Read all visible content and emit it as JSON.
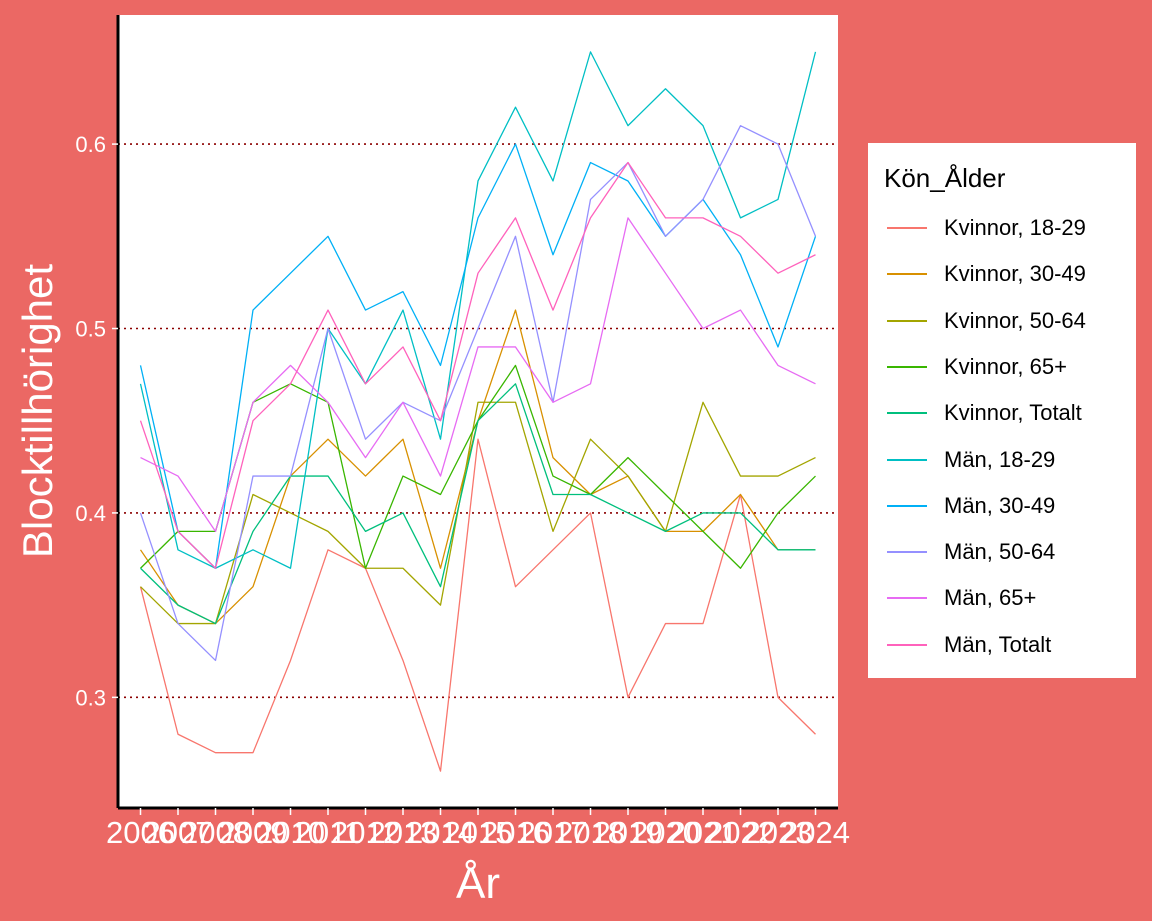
{
  "chart_data": {
    "type": "line",
    "title": "",
    "xlabel": "År",
    "ylabel": "Blocktillhörighet",
    "x": [
      2006,
      2007,
      2008,
      2009,
      2010,
      2011,
      2012,
      2013,
      2014,
      2015,
      2016,
      2017,
      2018,
      2019,
      2020,
      2021,
      2022,
      2023,
      2024
    ],
    "xlim": [
      2005.4,
      2024.6
    ],
    "ylim": [
      0.24,
      0.67
    ],
    "yticks": [
      0.3,
      0.4,
      0.5,
      0.6
    ],
    "ytick_labels": [
      "0.3",
      "0.4",
      "0.5",
      "0.6"
    ],
    "grid": "horizontal dotted lines at y ticks",
    "legend": {
      "title": "Kön_Ålder",
      "placement": "right"
    },
    "series": [
      {
        "name": "Kvinnor, 18-29",
        "color": "#f8766d",
        "values": [
          0.36,
          0.28,
          0.27,
          0.27,
          0.32,
          0.38,
          0.37,
          0.32,
          0.26,
          0.44,
          0.36,
          0.38,
          0.4,
          0.3,
          0.34,
          0.34,
          0.41,
          0.3,
          0.28
        ]
      },
      {
        "name": "Kvinnor, 30-49",
        "color": "#d89000",
        "values": [
          0.38,
          0.35,
          0.34,
          0.36,
          0.42,
          0.44,
          0.42,
          0.44,
          0.37,
          0.45,
          0.51,
          0.43,
          0.41,
          0.42,
          0.39,
          0.39,
          0.41,
          0.38,
          0.38
        ]
      },
      {
        "name": "Kvinnor, 50-64",
        "color": "#a3a500",
        "values": [
          0.36,
          0.34,
          0.34,
          0.41,
          0.4,
          0.39,
          0.37,
          0.37,
          0.35,
          0.46,
          0.46,
          0.39,
          0.44,
          0.42,
          0.39,
          0.46,
          0.42,
          0.42,
          0.43
        ]
      },
      {
        "name": "Kvinnor, 65+",
        "color": "#39b600",
        "values": [
          0.37,
          0.39,
          0.39,
          0.46,
          0.47,
          0.46,
          0.37,
          0.42,
          0.41,
          0.45,
          0.48,
          0.42,
          0.41,
          0.43,
          0.41,
          0.39,
          0.37,
          0.4,
          0.42
        ]
      },
      {
        "name": "Kvinnor, Totalt",
        "color": "#00bf7d",
        "values": [
          0.37,
          0.35,
          0.34,
          0.39,
          0.42,
          0.42,
          0.39,
          0.4,
          0.36,
          0.45,
          0.47,
          0.41,
          0.41,
          0.4,
          0.39,
          0.4,
          0.4,
          0.38,
          0.38
        ]
      },
      {
        "name": "Män, 18-29",
        "color": "#00bfc4",
        "values": [
          0.47,
          0.38,
          0.37,
          0.38,
          0.37,
          0.5,
          0.47,
          0.51,
          0.44,
          0.58,
          0.62,
          0.58,
          0.65,
          0.61,
          0.63,
          0.61,
          0.56,
          0.57,
          0.65
        ]
      },
      {
        "name": "Män, 30-49",
        "color": "#00b0f6",
        "values": [
          0.48,
          0.39,
          0.37,
          0.51,
          0.53,
          0.55,
          0.51,
          0.52,
          0.48,
          0.56,
          0.6,
          0.54,
          0.59,
          0.58,
          0.55,
          0.57,
          0.54,
          0.49,
          0.55
        ]
      },
      {
        "name": "Män, 50-64",
        "color": "#9590ff",
        "values": [
          0.4,
          0.34,
          0.32,
          0.42,
          0.42,
          0.5,
          0.44,
          0.46,
          0.45,
          0.5,
          0.55,
          0.46,
          0.57,
          0.59,
          0.55,
          0.57,
          0.61,
          0.6,
          0.55
        ]
      },
      {
        "name": "Män, 65+",
        "color": "#e76bf3",
        "values": [
          0.43,
          0.42,
          0.39,
          0.46,
          0.48,
          0.46,
          0.43,
          0.46,
          0.42,
          0.49,
          0.49,
          0.46,
          0.47,
          0.56,
          0.53,
          0.5,
          0.51,
          0.48,
          0.47
        ]
      },
      {
        "name": "Män, Totalt",
        "color": "#ff62bc",
        "values": [
          0.45,
          0.39,
          0.37,
          0.45,
          0.47,
          0.51,
          0.47,
          0.49,
          0.45,
          0.53,
          0.56,
          0.51,
          0.56,
          0.59,
          0.56,
          0.56,
          0.55,
          0.53,
          0.54
        ]
      }
    ]
  }
}
